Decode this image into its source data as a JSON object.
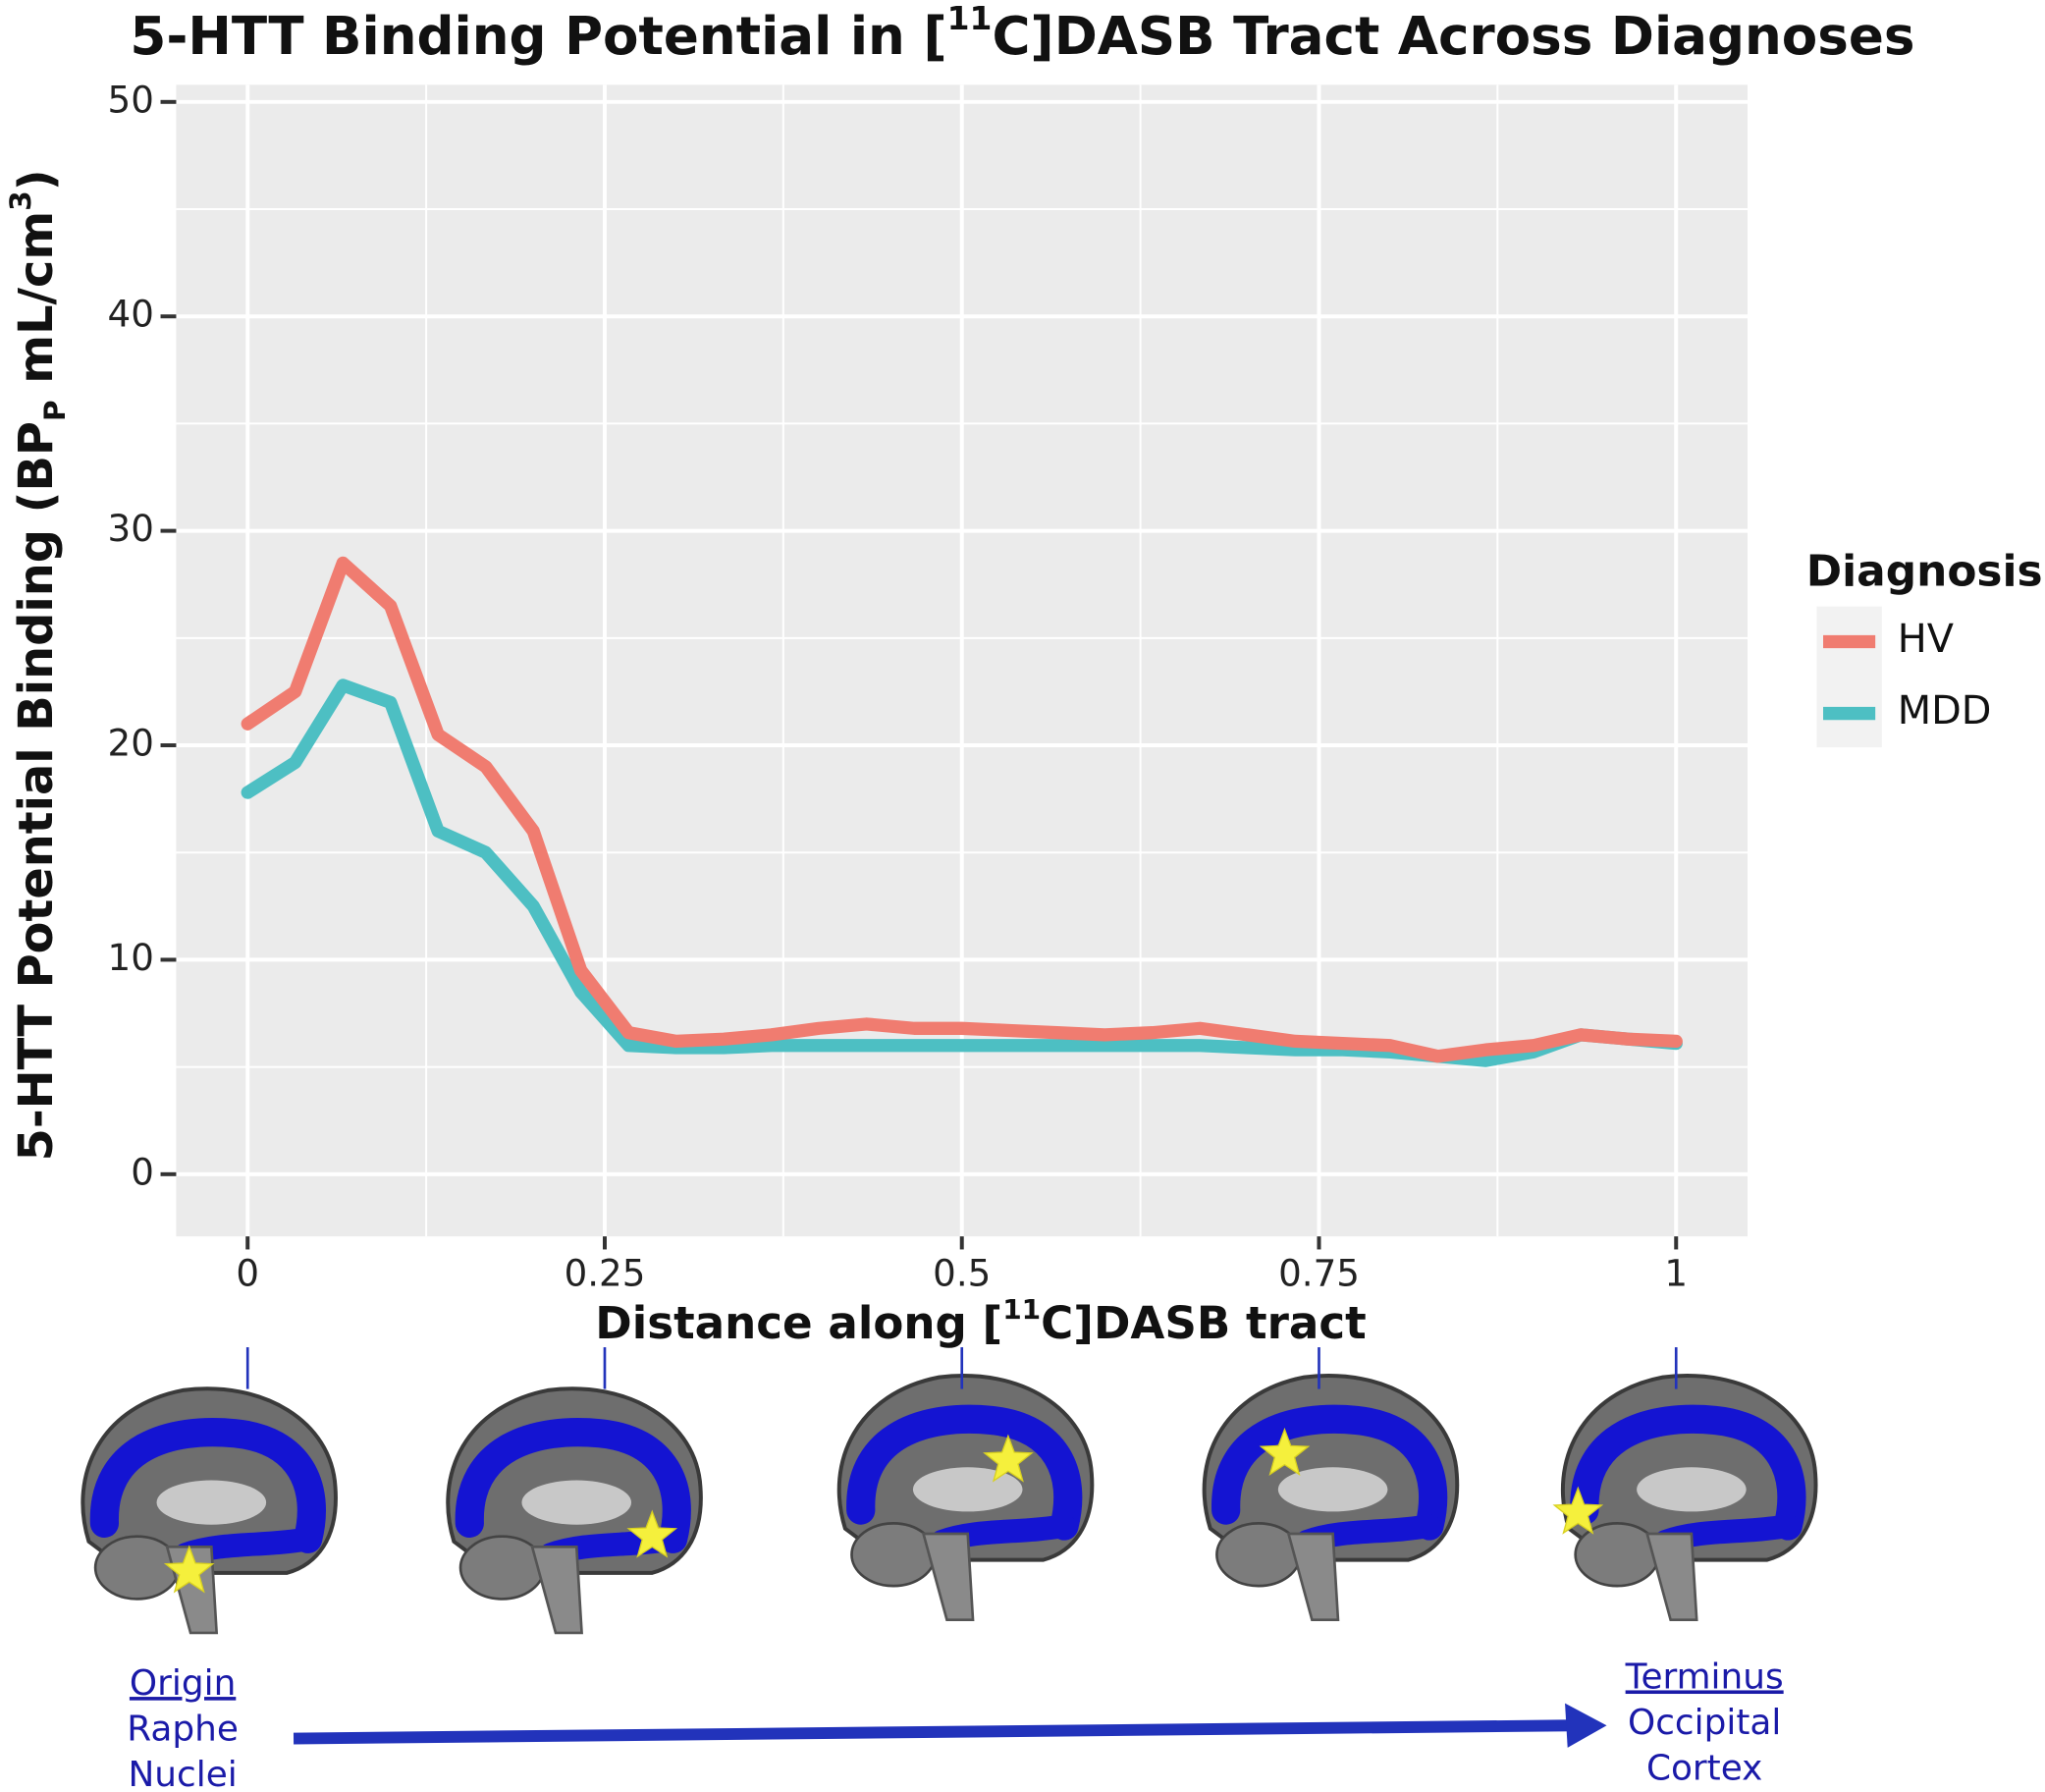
{
  "chart_data": {
    "type": "line",
    "title": [
      "5-HTT Binding Potential in [",
      "11",
      "C]DASB Tract Across Diagnoses"
    ],
    "xlabel": [
      "Distance along [",
      "11",
      "C]DASB tract"
    ],
    "ylabel": [
      "5-HTT Potential Binding (BP",
      "P",
      " mL/cm",
      "3",
      ")"
    ],
    "legend_title": "Diagnosis",
    "legend_position": "right",
    "x": [
      0,
      0.0333,
      0.0667,
      0.1,
      0.1333,
      0.1667,
      0.2,
      0.2333,
      0.2667,
      0.3,
      0.3333,
      0.3667,
      0.4,
      0.4333,
      0.4667,
      0.5,
      0.5333,
      0.5667,
      0.6,
      0.6333,
      0.6667,
      0.7,
      0.7333,
      0.7667,
      0.8,
      0.8333,
      0.8667,
      0.9,
      0.9333,
      0.9667,
      1
    ],
    "series": [
      {
        "name": "HV",
        "color": "#f07c70",
        "values": [
          21,
          22.5,
          28.5,
          26.5,
          20.5,
          19,
          16,
          9.5,
          6.6,
          6.2,
          6.3,
          6.5,
          6.8,
          7,
          6.8,
          6.8,
          6.7,
          6.6,
          6.5,
          6.6,
          6.8,
          6.5,
          6.2,
          6.1,
          6,
          5.5,
          5.8,
          6,
          6.5,
          6.3,
          6.2
        ]
      },
      {
        "name": "MDD",
        "color": "#4dbfc3",
        "values": [
          17.8,
          19.2,
          22.8,
          22,
          16,
          15,
          12.5,
          8.5,
          6,
          5.9,
          5.9,
          6,
          6,
          6,
          6,
          6,
          6,
          6,
          6,
          6,
          6,
          5.9,
          5.8,
          5.8,
          5.7,
          5.5,
          5.3,
          5.7,
          6.5,
          6.3,
          6.1
        ]
      }
    ],
    "xlim": [
      -0.05,
      1.05
    ],
    "xticks": [
      0,
      0.25,
      0.5,
      0.75,
      1
    ],
    "x_minor_grid": [
      0.125,
      0.375,
      0.625,
      0.875
    ],
    "ylim": [
      -2.9,
      50.8
    ],
    "yticks": [
      0,
      10,
      20,
      30,
      40,
      50
    ],
    "y_minor_grid": [
      5,
      15,
      25,
      35,
      45
    ],
    "grid": true,
    "annotations": {
      "origin": [
        "Origin",
        "Raphe",
        "Nuclei"
      ],
      "terminus": [
        "Terminus",
        "Occipital",
        "Cortex"
      ]
    }
  }
}
